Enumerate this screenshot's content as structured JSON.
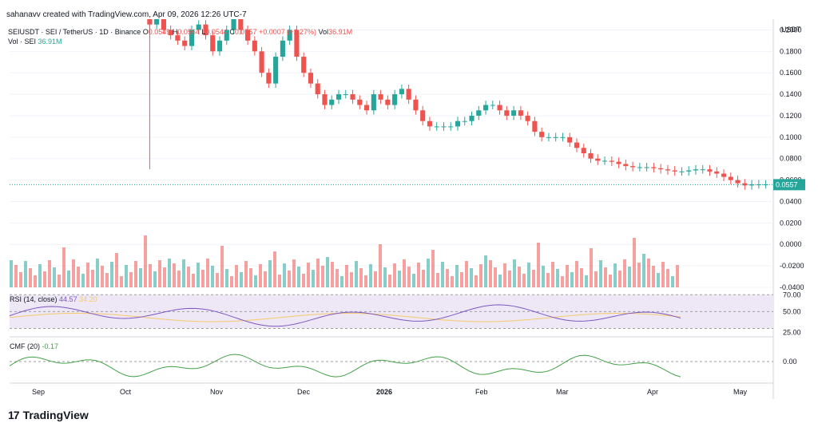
{
  "header": {
    "created_by": "sahanavv created with TradingView.com, Apr 09, 2026 12:26 UTC-7"
  },
  "legend": {
    "symbol": "SEIUSDT · SEI / TetherUS · 1D · Binance",
    "o_label": "O",
    "o_value": "0.0549",
    "h_label": "H",
    "h_value": "0.0564",
    "l_label": "L",
    "l_value": "0.0544",
    "c_label": "C",
    "c_value": "0.0557",
    "change": "+0.0007 (+1.27%)",
    "vol_label": "Vol",
    "vol_value": "36.91M",
    "vol_series_label": "Vol · SEI",
    "vol_series_value": "36.91M"
  },
  "rsi_legend": {
    "label": "RSI (14, close)",
    "value1": "44.57",
    "value2": "34.20"
  },
  "cmf_legend": {
    "label": "CMF (20)",
    "value": "-0.17"
  },
  "price_axis": {
    "currency": "USDT",
    "ticks": [
      "0.2000",
      "0.1800",
      "0.1600",
      "0.1400",
      "0.1200",
      "0.1000",
      "0.0800",
      "0.0600",
      "0.0400",
      "0.0200",
      "0.0000",
      "-0.0200",
      "-0.0400"
    ],
    "last_price": "0.0557"
  },
  "rsi_axis": {
    "ticks": [
      "70.00",
      "50.00",
      "25.00"
    ]
  },
  "cmf_axis": {
    "ticks": [
      "0.00"
    ]
  },
  "time_axis": {
    "labels": [
      "Sep",
      "Oct",
      "Nov",
      "Dec",
      "2026",
      "Feb",
      "Mar",
      "Apr",
      "May"
    ]
  },
  "brand": {
    "name": "TradingView"
  },
  "colors": {
    "up": "#26a69a",
    "down": "#ef5350",
    "rsi": "#7e57c2",
    "rsi_ma": "#f5c96b",
    "cmf": "#43a047",
    "rsi_band": "#ede7f6"
  },
  "chart_data": {
    "type": "candlestick",
    "price_close_path": [
      [
        0.205,
        0.21,
        0.2,
        0.195,
        0.19,
        0.185,
        0.2,
        0.205,
        0.195,
        0.18,
        0.19,
        0.2,
        0.21,
        0.2,
        0.19,
        0.18,
        0.16,
        0.15,
        0.175,
        0.19,
        0.2,
        0.175,
        0.16,
        0.15,
        0.14,
        0.13,
        0.135,
        0.14,
        0.14,
        0.135,
        0.13,
        0.125,
        0.14,
        0.135,
        0.13,
        0.14,
        0.145,
        0.135,
        0.125,
        0.115,
        0.11,
        0.11,
        0.11,
        0.11,
        0.115,
        0.115,
        0.12,
        0.125,
        0.13,
        0.13,
        0.125,
        0.12,
        0.125,
        0.12,
        0.115,
        0.105,
        0.1,
        0.1,
        0.1,
        0.1,
        0.095,
        0.09,
        0.085,
        0.08,
        0.078,
        0.078,
        0.077,
        0.075,
        0.073,
        0.072,
        0.072,
        0.072,
        0.071,
        0.07,
        0.069,
        0.068,
        0.068,
        0.069,
        0.07,
        0.07,
        0.068,
        0.066,
        0.063,
        0.06,
        0.057,
        0.055,
        0.056,
        0.056,
        0.056
      ]
    ],
    "price_range": [
      -0.04,
      0.21
    ],
    "spike_low": 0.07,
    "rsi_range": [
      20,
      75
    ],
    "rsi_bands": [
      70,
      50,
      30
    ],
    "cmf_range": [
      -0.3,
      0.3
    ]
  }
}
